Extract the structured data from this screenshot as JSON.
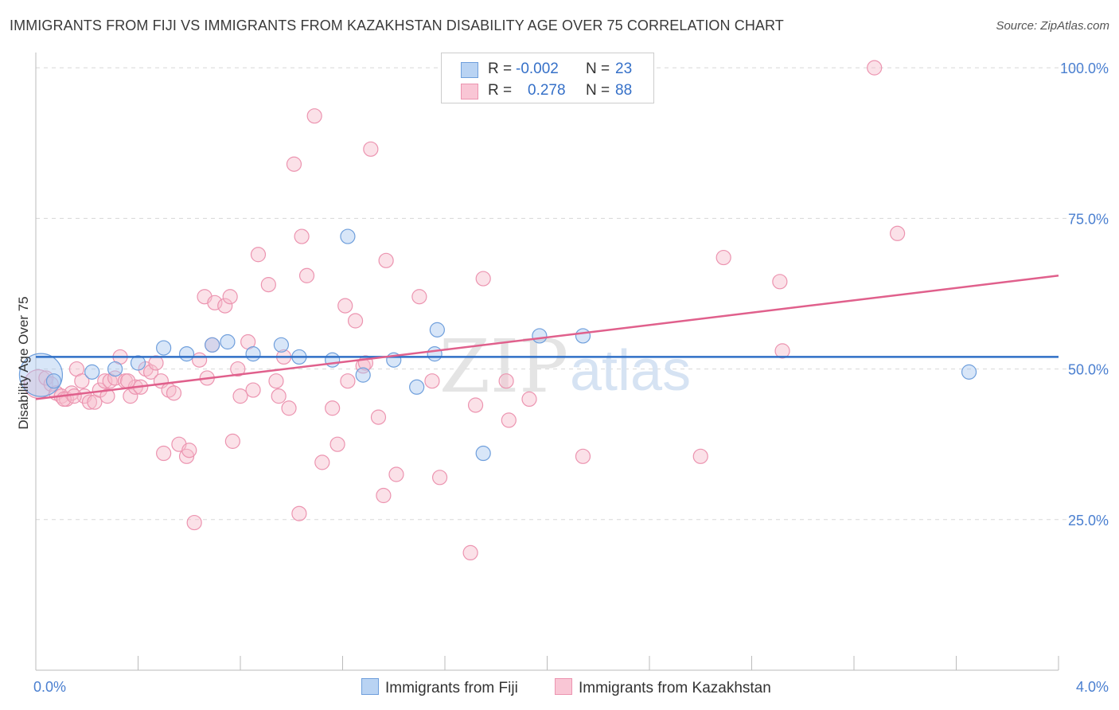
{
  "title": "IMMIGRANTS FROM FIJI VS IMMIGRANTS FROM KAZAKHSTAN DISABILITY AGE OVER 75 CORRELATION CHART",
  "source": "Source: ZipAtlas.com",
  "watermark": {
    "zip": "ZIP",
    "atlas": "atlas"
  },
  "legend": {
    "rows": [
      {
        "r_label": "R =",
        "r_value": "-0.002",
        "n_label": "N =",
        "n_value": "23"
      },
      {
        "r_label": "R =",
        "r_value": "0.278",
        "n_label": "N =",
        "n_value": "88"
      }
    ]
  },
  "bottom_legend": [
    "Immigrants from Fiji",
    "Immigrants from Kazakhstan"
  ],
  "colors": {
    "fiji_fill": "#a9c8f0",
    "fiji_stroke": "#6f9fdc",
    "fiji_line": "#2f6fc6",
    "kaz_fill": "#f7bccd",
    "kaz_stroke": "#ec94b0",
    "kaz_line": "#e0608c",
    "tick": "#4a7fd0"
  },
  "chart_data": {
    "type": "scatter",
    "xlabel": "",
    "ylabel": "Disability Age Over 75",
    "xlim": [
      0,
      4.0
    ],
    "ylim": [
      0,
      102
    ],
    "x_tick_labels": [
      "0.0%",
      "4.0%"
    ],
    "y_ticks": [
      25,
      50,
      75,
      100
    ],
    "y_tick_labels": [
      "25.0%",
      "50.0%",
      "75.0%",
      "100.0%"
    ],
    "grid": true,
    "series": [
      {
        "name": "Immigrants from Fiji",
        "trend": [
          [
            0,
            52.0
          ],
          [
            4.0,
            52.0
          ]
        ],
        "points": [
          [
            0.02,
            49,
            3
          ],
          [
            0.22,
            49.5,
            1
          ],
          [
            0.31,
            50,
            1
          ],
          [
            0.4,
            51,
            1
          ],
          [
            0.5,
            53.5,
            1
          ],
          [
            0.59,
            52.5,
            1
          ],
          [
            0.69,
            54,
            1
          ],
          [
            0.75,
            54.5,
            1
          ],
          [
            0.85,
            52.5,
            1
          ],
          [
            0.96,
            54,
            1
          ],
          [
            1.03,
            52,
            1
          ],
          [
            1.16,
            51.5,
            1
          ],
          [
            1.22,
            72,
            1
          ],
          [
            1.28,
            49,
            1
          ],
          [
            1.4,
            51.5,
            1
          ],
          [
            1.49,
            47,
            1
          ],
          [
            1.56,
            52.5,
            1
          ],
          [
            1.57,
            56.5,
            1
          ],
          [
            1.75,
            36,
            1
          ],
          [
            1.97,
            55.5,
            1
          ],
          [
            2.14,
            55.5,
            1
          ],
          [
            3.65,
            49.5,
            1
          ],
          [
            0.07,
            48,
            1
          ]
        ]
      },
      {
        "name": "Immigrants from Kazakhstan",
        "trend": [
          [
            0,
            45.0
          ],
          [
            4.0,
            65.5
          ]
        ],
        "points": [
          [
            0.01,
            47.5,
            2
          ],
          [
            0.04,
            48.5,
            1
          ],
          [
            0.06,
            47.5,
            1
          ],
          [
            0.08,
            46,
            1
          ],
          [
            0.1,
            45.5,
            1
          ],
          [
            0.12,
            45,
            1
          ],
          [
            0.14,
            46,
            1
          ],
          [
            0.16,
            50,
            1
          ],
          [
            0.18,
            48,
            1
          ],
          [
            0.19,
            45.5,
            1
          ],
          [
            0.21,
            44.5,
            1
          ],
          [
            0.23,
            44.5,
            1
          ],
          [
            0.25,
            46.5,
            1
          ],
          [
            0.27,
            48,
            1
          ],
          [
            0.29,
            48,
            1
          ],
          [
            0.31,
            48.5,
            1
          ],
          [
            0.33,
            52,
            1
          ],
          [
            0.35,
            48,
            1
          ],
          [
            0.37,
            45.5,
            1
          ],
          [
            0.39,
            47,
            1
          ],
          [
            0.41,
            47,
            1
          ],
          [
            0.43,
            50,
            1
          ],
          [
            0.45,
            49.5,
            1
          ],
          [
            0.47,
            51,
            1
          ],
          [
            0.49,
            48,
            1
          ],
          [
            0.5,
            36,
            1
          ],
          [
            0.52,
            46.5,
            1
          ],
          [
            0.54,
            46,
            1
          ],
          [
            0.56,
            37.5,
            1
          ],
          [
            0.59,
            35.5,
            1
          ],
          [
            0.6,
            36.5,
            1
          ],
          [
            0.62,
            24.5,
            1
          ],
          [
            0.64,
            51.5,
            1
          ],
          [
            0.66,
            62,
            1
          ],
          [
            0.67,
            48.5,
            1
          ],
          [
            0.69,
            54,
            1
          ],
          [
            0.7,
            61,
            1
          ],
          [
            0.74,
            60.5,
            1
          ],
          [
            0.76,
            62,
            1
          ],
          [
            0.77,
            38,
            1
          ],
          [
            0.79,
            50,
            1
          ],
          [
            0.8,
            45.5,
            1
          ],
          [
            0.83,
            54.5,
            1
          ],
          [
            0.85,
            46.5,
            1
          ],
          [
            0.87,
            69,
            1
          ],
          [
            0.91,
            64,
            1
          ],
          [
            0.94,
            48,
            1
          ],
          [
            0.95,
            45.5,
            1
          ],
          [
            0.97,
            52,
            1
          ],
          [
            0.99,
            43.5,
            1
          ],
          [
            1.01,
            84,
            1
          ],
          [
            1.03,
            26,
            1
          ],
          [
            1.04,
            72,
            1
          ],
          [
            1.06,
            65.5,
            1
          ],
          [
            1.09,
            92,
            1
          ],
          [
            1.12,
            34.5,
            1
          ],
          [
            1.16,
            43.5,
            1
          ],
          [
            1.18,
            37.5,
            1
          ],
          [
            1.21,
            60.5,
            1
          ],
          [
            1.22,
            48,
            1
          ],
          [
            1.25,
            58,
            1
          ],
          [
            1.28,
            50.5,
            1
          ],
          [
            1.29,
            51,
            1
          ],
          [
            1.31,
            86.5,
            1
          ],
          [
            1.34,
            42,
            1
          ],
          [
            1.36,
            29,
            1
          ],
          [
            1.37,
            68,
            1
          ],
          [
            1.41,
            32.5,
            1
          ],
          [
            1.5,
            62,
            1
          ],
          [
            1.55,
            48,
            1
          ],
          [
            1.58,
            32,
            1
          ],
          [
            1.7,
            19.5,
            1
          ],
          [
            1.72,
            44,
            1
          ],
          [
            1.75,
            65,
            1
          ],
          [
            1.84,
            48,
            1
          ],
          [
            1.85,
            41.5,
            1
          ],
          [
            1.93,
            45,
            1
          ],
          [
            2.14,
            35.5,
            1
          ],
          [
            2.6,
            35.5,
            1
          ],
          [
            2.69,
            68.5,
            1
          ],
          [
            2.91,
            64.5,
            1
          ],
          [
            2.92,
            53,
            1
          ],
          [
            3.28,
            100,
            1
          ],
          [
            3.37,
            72.5,
            1
          ],
          [
            0.11,
            45,
            1
          ],
          [
            0.15,
            45.5,
            1
          ],
          [
            0.28,
            45.5,
            1
          ],
          [
            0.36,
            48,
            1
          ]
        ]
      }
    ]
  }
}
